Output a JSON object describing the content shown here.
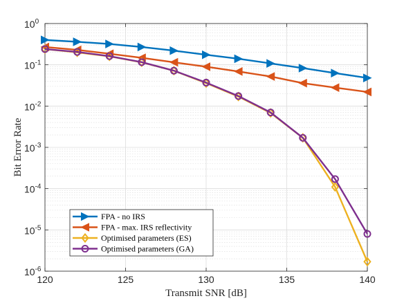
{
  "chart_data": {
    "type": "line",
    "title": "",
    "xlabel": "Transmit SNR [dB]",
    "ylabel": "Bit Error Rate",
    "x": [
      120,
      122,
      124,
      126,
      128,
      130,
      132,
      134,
      136,
      138,
      140
    ],
    "xlim": [
      120,
      140
    ],
    "ylim": [
      1e-06,
      1
    ],
    "yscale": "log",
    "xticks": [
      120,
      125,
      130,
      135,
      140
    ],
    "yticks": [
      {
        "base": "10",
        "exp": "0",
        "value": 1
      },
      {
        "base": "10",
        "exp": "-1",
        "value": 0.1
      },
      {
        "base": "10",
        "exp": "-2",
        "value": 0.01
      },
      {
        "base": "10",
        "exp": "-3",
        "value": 0.001
      },
      {
        "base": "10",
        "exp": "-4",
        "value": 0.0001
      },
      {
        "base": "10",
        "exp": "-5",
        "value": 1e-05
      },
      {
        "base": "10",
        "exp": "-6",
        "value": 1e-06
      }
    ],
    "grid": true,
    "legend_position": "bottom-left",
    "series": [
      {
        "name": "FPA - no IRS",
        "color": "#0072BD",
        "marker": "triangle-right",
        "values": [
          0.4,
          0.36,
          0.32,
          0.27,
          0.22,
          0.175,
          0.14,
          0.108,
          0.083,
          0.063,
          0.048
        ]
      },
      {
        "name": "FPA - max. IRS reflectivity",
        "color": "#D95319",
        "marker": "triangle-left",
        "values": [
          0.27,
          0.23,
          0.185,
          0.148,
          0.115,
          0.09,
          0.069,
          0.052,
          0.036,
          0.028,
          0.022
        ]
      },
      {
        "name": "Optimised parameters (ES)",
        "color": "#EDB120",
        "marker": "diamond",
        "values": [
          0.24,
          0.2,
          0.16,
          0.115,
          0.072,
          0.036,
          0.017,
          0.0068,
          0.0017,
          0.00011,
          1.7e-06
        ]
      },
      {
        "name": "Optimised parameters (GA)",
        "color": "#7E2F8E",
        "marker": "circle",
        "values": [
          0.24,
          0.205,
          0.162,
          0.116,
          0.072,
          0.037,
          0.0175,
          0.007,
          0.0017,
          0.00017,
          8e-06
        ]
      }
    ]
  }
}
